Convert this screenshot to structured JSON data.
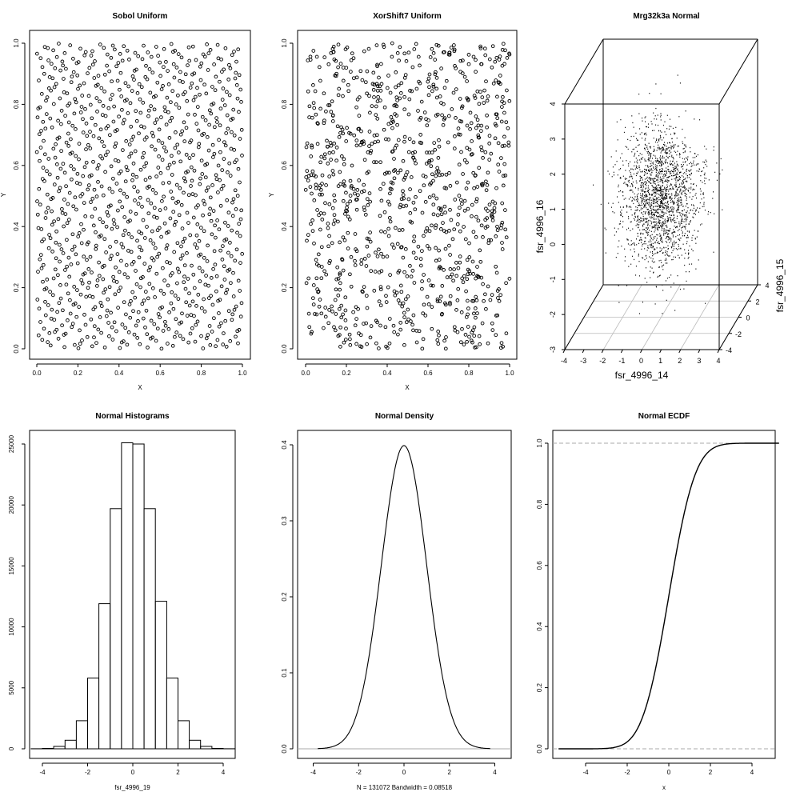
{
  "chart_data": [
    {
      "id": "sobol",
      "type": "scatter",
      "title": "Sobol Uniform",
      "xlabel": "X",
      "ylabel": "Y",
      "xlim": [
        0,
        1
      ],
      "ylim": [
        0,
        1
      ],
      "xticks": [
        "0.0",
        "0.2",
        "0.4",
        "0.6",
        "0.8",
        "1.0"
      ],
      "yticks": [
        "0.0",
        "0.2",
        "0.4",
        "0.6",
        "0.8",
        "1.0"
      ],
      "point_count": 1024,
      "sampling": "low-discrepancy"
    },
    {
      "id": "xorshift",
      "type": "scatter",
      "title": "XorShift7 Uniform",
      "xlabel": "X",
      "ylabel": "Y",
      "xlim": [
        0,
        1
      ],
      "ylim": [
        0,
        1
      ],
      "xticks": [
        "0.0",
        "0.2",
        "0.4",
        "0.6",
        "0.8",
        "1.0"
      ],
      "yticks": [
        "0.0",
        "0.2",
        "0.4",
        "0.6",
        "0.8",
        "1.0"
      ],
      "point_count": 1024,
      "sampling": "pseudo-random"
    },
    {
      "id": "mrg",
      "type": "scatter3d",
      "title": "Mrg32k3a Normal",
      "xlabel": "fsr_4996_14",
      "ylabel": "fsr_4996_15",
      "zlabel": "fsr_4996_16",
      "xlim": [
        -4,
        4
      ],
      "ylim": [
        -4,
        4
      ],
      "zlim": [
        -3,
        4
      ],
      "xticks": [
        "-4",
        "-3",
        "-2",
        "-1",
        "0",
        "1",
        "2",
        "3",
        "4"
      ],
      "yticks": [
        "-4",
        "-2",
        "0",
        "2",
        "4"
      ],
      "zticks": [
        "-3",
        "-2",
        "-1",
        "0",
        "1",
        "2",
        "3",
        "4"
      ],
      "distribution": "standard normal"
    },
    {
      "id": "hist",
      "type": "bar",
      "title": "Normal Histograms",
      "xlabel": "fsr_4996_19",
      "ylabel": "",
      "bin_edges": [
        -4.5,
        -4,
        -3.5,
        -3,
        -2.5,
        -2,
        -1.5,
        -1,
        -0.5,
        0,
        0.5,
        1,
        1.5,
        2,
        2.5,
        3,
        3.5,
        4,
        4.5
      ],
      "values": [
        5,
        30,
        200,
        700,
        2300,
        5800,
        11900,
        19700,
        25100,
        25000,
        19700,
        12100,
        5800,
        2300,
        700,
        200,
        30,
        5
      ],
      "xticks": [
        "-4",
        "-2",
        "0",
        "2",
        "4"
      ],
      "yticks": [
        "0",
        "5000",
        "10000",
        "15000",
        "20000",
        "25000"
      ],
      "xlim": [
        -4.5,
        4.5
      ],
      "ylim": [
        0,
        25100
      ]
    },
    {
      "id": "density",
      "type": "line",
      "title": "Normal Density",
      "xlabel": "N = 131072   Bandwidth = 0.08518",
      "ylabel": "",
      "xlim": [
        -4.9,
        4.9
      ],
      "ylim": [
        0,
        0.4
      ],
      "xticks": [
        "-4",
        "-2",
        "0",
        "2",
        "4"
      ],
      "yticks": [
        "0.0",
        "0.1",
        "0.2",
        "0.3",
        "0.4"
      ],
      "mean": 0,
      "sd": 1,
      "x_range": [
        -3.8,
        3.8
      ]
    },
    {
      "id": "ecdf",
      "type": "line",
      "title": "Normal ECDF",
      "xlabel": "x",
      "ylabel": "",
      "xlim": [
        -5.3,
        5.3
      ],
      "ylim": [
        0,
        1
      ],
      "xticks": [
        "-4",
        "-2",
        "0",
        "2",
        "4"
      ],
      "yticks": [
        "0.0",
        "0.2",
        "0.4",
        "0.6",
        "0.8",
        "1.0"
      ],
      "mean": 0,
      "sd": 1,
      "reference_lines": [
        0,
        1
      ]
    }
  ]
}
